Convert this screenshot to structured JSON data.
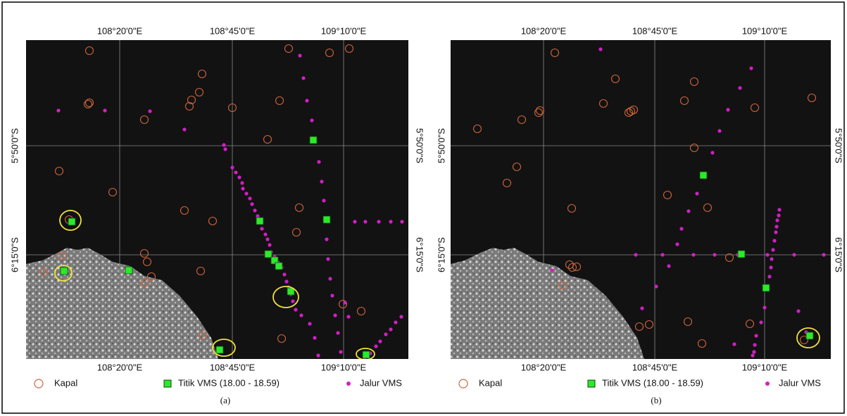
{
  "panels": [
    {
      "caption": "(a)",
      "lon_labels": [
        "108°20'0\"E",
        "108°45'0\"E",
        "109°10'0\"E"
      ],
      "lat_labels": [
        "5°50'0\"S",
        "6°15'0\"S"
      ],
      "legend": [
        "Kapal",
        "Titik VMS (18.00 - 18.59)",
        "Jalur VMS"
      ]
    },
    {
      "caption": "(b)",
      "lon_labels": [
        "108°20'0\"E",
        "108°45'0\"E",
        "109°10'0\"E"
      ],
      "lat_labels": [
        "5°50'0\"S",
        "6°15'0\"S"
      ],
      "legend": [
        "Kapal",
        "Titik VMS (18.00 - 18.59)",
        "Jalur VMS"
      ]
    }
  ]
}
